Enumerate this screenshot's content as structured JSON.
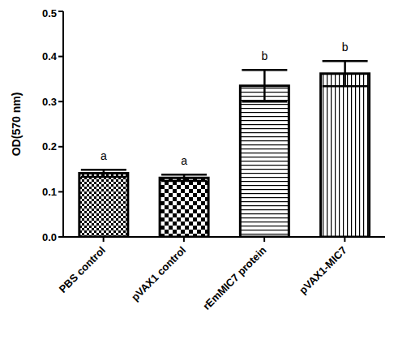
{
  "chart_data": {
    "type": "bar",
    "categories": [
      "PBS control",
      "pVAX1 control",
      "rEmMIC7 protein",
      "pVAX1-MIC7"
    ],
    "values": [
      0.141,
      0.131,
      0.335,
      0.362
    ],
    "errors": [
      0.008,
      0.007,
      0.035,
      0.028
    ],
    "annotations": [
      "a",
      "a",
      "b",
      "b"
    ],
    "y_label": "OD(570 nm)",
    "ylim": [
      0,
      0.5
    ],
    "yticks": [
      {
        "value": 0,
        "label": "0.0"
      },
      0.1,
      0.2,
      0.3,
      0.4,
      0.5
    ],
    "color": "#000000",
    "grid": false
  }
}
